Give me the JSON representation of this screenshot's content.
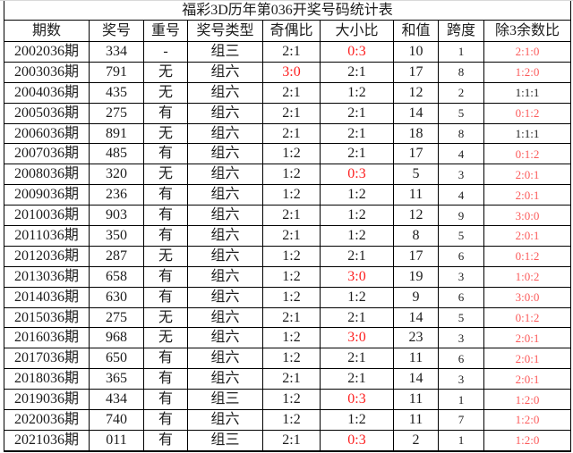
{
  "title": "福彩3D历年第036开奖号码统计表",
  "columns": [
    {
      "key": "period",
      "label": "期数"
    },
    {
      "key": "number",
      "label": "奖号"
    },
    {
      "key": "repeat",
      "label": "重号"
    },
    {
      "key": "type",
      "label": "奖号类型"
    },
    {
      "key": "odd-even-ratio",
      "label": "奇偶比"
    },
    {
      "key": "big-small-ratio",
      "label": "大小比"
    },
    {
      "key": "sum",
      "label": "和值"
    },
    {
      "key": "span",
      "label": "跨度"
    },
    {
      "key": "mod3-ratio",
      "label": "除3余数比"
    }
  ],
  "rows": [
    {
      "cells": [
        {
          "t": "2002036期"
        },
        {
          "t": "334"
        },
        {
          "t": "-"
        },
        {
          "t": "组三"
        },
        {
          "t": "2:1"
        },
        {
          "t": "0:3",
          "red": true
        },
        {
          "t": "10"
        },
        {
          "t": "1"
        },
        {
          "t": "2:1:0",
          "red": true
        }
      ]
    },
    {
      "cells": [
        {
          "t": "2003036期"
        },
        {
          "t": "791"
        },
        {
          "t": "无"
        },
        {
          "t": "组六"
        },
        {
          "t": "3:0",
          "red": true
        },
        {
          "t": "2:1"
        },
        {
          "t": "17"
        },
        {
          "t": "8"
        },
        {
          "t": "1:2:0",
          "red": true
        }
      ]
    },
    {
      "cells": [
        {
          "t": "2004036期"
        },
        {
          "t": "435"
        },
        {
          "t": "无"
        },
        {
          "t": "组六"
        },
        {
          "t": "2:1"
        },
        {
          "t": "1:2"
        },
        {
          "t": "12"
        },
        {
          "t": "2"
        },
        {
          "t": "1:1:1",
          "red": false
        }
      ]
    },
    {
      "cells": [
        {
          "t": "2005036期"
        },
        {
          "t": "275"
        },
        {
          "t": "有"
        },
        {
          "t": "组六"
        },
        {
          "t": "2:1"
        },
        {
          "t": "2:1"
        },
        {
          "t": "14"
        },
        {
          "t": "5"
        },
        {
          "t": "0:1:2",
          "red": true
        }
      ]
    },
    {
      "cells": [
        {
          "t": "2006036期"
        },
        {
          "t": "891"
        },
        {
          "t": "无"
        },
        {
          "t": "组六"
        },
        {
          "t": "2:1"
        },
        {
          "t": "2:1"
        },
        {
          "t": "18"
        },
        {
          "t": "8"
        },
        {
          "t": "1:1:1",
          "red": false
        }
      ]
    },
    {
      "cells": [
        {
          "t": "2007036期"
        },
        {
          "t": "485"
        },
        {
          "t": "有"
        },
        {
          "t": "组六"
        },
        {
          "t": "1:2"
        },
        {
          "t": "2:1"
        },
        {
          "t": "17"
        },
        {
          "t": "4"
        },
        {
          "t": "0:1:2",
          "red": true
        }
      ]
    },
    {
      "cells": [
        {
          "t": "2008036期"
        },
        {
          "t": "320"
        },
        {
          "t": "无"
        },
        {
          "t": "组六"
        },
        {
          "t": "1:2"
        },
        {
          "t": "0:3",
          "red": true
        },
        {
          "t": "5"
        },
        {
          "t": "3"
        },
        {
          "t": "2:0:1",
          "red": true
        }
      ]
    },
    {
      "cells": [
        {
          "t": "2009036期"
        },
        {
          "t": "236"
        },
        {
          "t": "有"
        },
        {
          "t": "组六"
        },
        {
          "t": "1:2"
        },
        {
          "t": "1:2"
        },
        {
          "t": "11"
        },
        {
          "t": "4"
        },
        {
          "t": "2:0:1",
          "red": true
        }
      ]
    },
    {
      "cells": [
        {
          "t": "2010036期"
        },
        {
          "t": "903"
        },
        {
          "t": "有"
        },
        {
          "t": "组六"
        },
        {
          "t": "2:1"
        },
        {
          "t": "1:2"
        },
        {
          "t": "12"
        },
        {
          "t": "9"
        },
        {
          "t": "3:0:0",
          "red": true
        }
      ]
    },
    {
      "cells": [
        {
          "t": "2011036期"
        },
        {
          "t": "350"
        },
        {
          "t": "有"
        },
        {
          "t": "组六"
        },
        {
          "t": "2:1"
        },
        {
          "t": "1:2"
        },
        {
          "t": "8"
        },
        {
          "t": "5"
        },
        {
          "t": "2:0:1",
          "red": true
        }
      ]
    },
    {
      "cells": [
        {
          "t": "2012036期"
        },
        {
          "t": "287"
        },
        {
          "t": "无"
        },
        {
          "t": "组六"
        },
        {
          "t": "1:2"
        },
        {
          "t": "2:1"
        },
        {
          "t": "17"
        },
        {
          "t": "6"
        },
        {
          "t": "0:1:2",
          "red": true
        }
      ]
    },
    {
      "cells": [
        {
          "t": "2013036期"
        },
        {
          "t": "658"
        },
        {
          "t": "有"
        },
        {
          "t": "组六"
        },
        {
          "t": "1:2"
        },
        {
          "t": "3:0",
          "red": true
        },
        {
          "t": "19"
        },
        {
          "t": "3"
        },
        {
          "t": "1:0:2",
          "red": true
        }
      ]
    },
    {
      "cells": [
        {
          "t": "2014036期"
        },
        {
          "t": "630"
        },
        {
          "t": "有"
        },
        {
          "t": "组六"
        },
        {
          "t": "1:2"
        },
        {
          "t": "1:2"
        },
        {
          "t": "9"
        },
        {
          "t": "6"
        },
        {
          "t": "3:0:0",
          "red": true
        }
      ]
    },
    {
      "cells": [
        {
          "t": "2015036期"
        },
        {
          "t": "275"
        },
        {
          "t": "无"
        },
        {
          "t": "组六"
        },
        {
          "t": "2:1"
        },
        {
          "t": "2:1"
        },
        {
          "t": "14"
        },
        {
          "t": "5"
        },
        {
          "t": "0:1:2",
          "red": true
        }
      ]
    },
    {
      "cells": [
        {
          "t": "2016036期"
        },
        {
          "t": "968"
        },
        {
          "t": "无"
        },
        {
          "t": "组六"
        },
        {
          "t": "1:2"
        },
        {
          "t": "3:0",
          "red": true
        },
        {
          "t": "23"
        },
        {
          "t": "3"
        },
        {
          "t": "2:0:1",
          "red": true
        }
      ]
    },
    {
      "cells": [
        {
          "t": "2017036期"
        },
        {
          "t": "650"
        },
        {
          "t": "有"
        },
        {
          "t": "组六"
        },
        {
          "t": "1:2"
        },
        {
          "t": "2:1"
        },
        {
          "t": "11"
        },
        {
          "t": "6"
        },
        {
          "t": "2:0:1",
          "red": true
        }
      ]
    },
    {
      "cells": [
        {
          "t": "2018036期"
        },
        {
          "t": "365"
        },
        {
          "t": "有"
        },
        {
          "t": "组六"
        },
        {
          "t": "2:1"
        },
        {
          "t": "2:1"
        },
        {
          "t": "14"
        },
        {
          "t": "3"
        },
        {
          "t": "2:0:1",
          "red": true
        }
      ]
    },
    {
      "cells": [
        {
          "t": "2019036期"
        },
        {
          "t": "434"
        },
        {
          "t": "有"
        },
        {
          "t": "组三"
        },
        {
          "t": "1:2"
        },
        {
          "t": "0:3",
          "red": true
        },
        {
          "t": "11"
        },
        {
          "t": "1"
        },
        {
          "t": "1:2:0",
          "red": true
        }
      ]
    },
    {
      "cells": [
        {
          "t": "2020036期"
        },
        {
          "t": "740"
        },
        {
          "t": "有"
        },
        {
          "t": "组六"
        },
        {
          "t": "1:2"
        },
        {
          "t": "1:2"
        },
        {
          "t": "11"
        },
        {
          "t": "7"
        },
        {
          "t": "1:2:0",
          "red": true
        }
      ]
    },
    {
      "cells": [
        {
          "t": "2021036期"
        },
        {
          "t": "011"
        },
        {
          "t": "有"
        },
        {
          "t": "组三"
        },
        {
          "t": "2:1"
        },
        {
          "t": "0:3",
          "red": true
        },
        {
          "t": "2"
        },
        {
          "t": "1"
        },
        {
          "t": "1:2:0",
          "red": true
        }
      ]
    }
  ],
  "colors": {
    "text": "#1c1c1c",
    "highlight_red": "#fd2020",
    "mod3_highlight_red": "#fb5a5a",
    "border": "#000000",
    "top_edge_line": "#d9d9d9",
    "background": "#ffffff"
  }
}
